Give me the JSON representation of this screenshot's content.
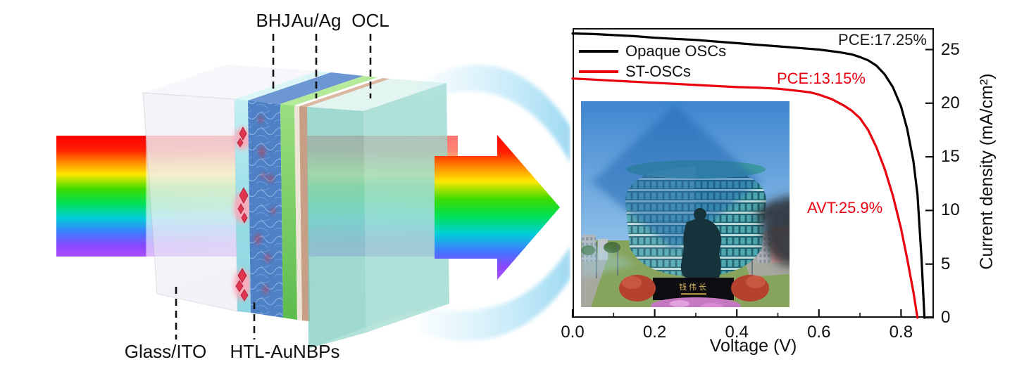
{
  "device": {
    "label_bhj": "BHJ",
    "label_auag": "Au/Ag",
    "label_ocl": "OCL",
    "label_glass_ito": "Glass/ITO",
    "label_htl": "HTL-AuNBPs"
  },
  "photo": {
    "pedestal_text": "钱伟长"
  },
  "chart_data": {
    "type": "line",
    "title": "",
    "xlabel": "Voltage (V)",
    "ylabel": "Current density (mA/cm²)",
    "xlim": [
      0,
      0.88
    ],
    "ylim": [
      0,
      27
    ],
    "x_major_ticks": [
      0,
      0.2,
      0.4,
      0.6,
      0.8
    ],
    "x_minor_step": 0.1,
    "y_major_ticks": [
      0,
      5,
      10,
      15,
      20,
      25
    ],
    "grid": false,
    "legend_position": "top-left",
    "legend": [
      {
        "label": "Opaque OSCs",
        "color": "#000000"
      },
      {
        "label": "ST-OSCs",
        "color": "#e8000f"
      }
    ],
    "annotations": [
      {
        "text": "PCE:17.25%",
        "color": "#1a1a1a"
      },
      {
        "text": "PCE:13.15%",
        "color": "#e8000f"
      },
      {
        "text": "AVT:25.9%",
        "color": "#e8000f"
      }
    ],
    "series": [
      {
        "name": "Opaque OSCs",
        "color": "#000000",
        "points": [
          [
            0,
            26.5
          ],
          [
            0.05,
            26.45
          ],
          [
            0.1,
            26.35
          ],
          [
            0.15,
            26.25
          ],
          [
            0.2,
            26.1
          ],
          [
            0.25,
            26.0
          ],
          [
            0.3,
            25.9
          ],
          [
            0.35,
            25.75
          ],
          [
            0.4,
            25.6
          ],
          [
            0.45,
            25.45
          ],
          [
            0.5,
            25.3
          ],
          [
            0.55,
            25.15
          ],
          [
            0.6,
            25.0
          ],
          [
            0.65,
            24.75
          ],
          [
            0.68,
            24.55
          ],
          [
            0.7,
            24.3
          ],
          [
            0.72,
            24.0
          ],
          [
            0.74,
            23.5
          ],
          [
            0.76,
            22.7
          ],
          [
            0.78,
            21.5
          ],
          [
            0.8,
            19.7
          ],
          [
            0.815,
            17.6
          ],
          [
            0.83,
            14.6
          ],
          [
            0.84,
            11.5
          ],
          [
            0.85,
            5.5
          ],
          [
            0.857,
            0
          ]
        ]
      },
      {
        "name": "ST-OSCs",
        "color": "#e8000f",
        "points": [
          [
            0,
            22.3
          ],
          [
            0.05,
            22.2
          ],
          [
            0.1,
            22.1
          ],
          [
            0.15,
            22.0
          ],
          [
            0.2,
            21.9
          ],
          [
            0.25,
            21.8
          ],
          [
            0.3,
            21.7
          ],
          [
            0.35,
            21.6
          ],
          [
            0.4,
            21.5
          ],
          [
            0.45,
            21.45
          ],
          [
            0.5,
            21.35
          ],
          [
            0.55,
            21.15
          ],
          [
            0.58,
            21.0
          ],
          [
            0.6,
            20.8
          ],
          [
            0.63,
            20.4
          ],
          [
            0.66,
            19.8
          ],
          [
            0.68,
            19.3
          ],
          [
            0.7,
            18.6
          ],
          [
            0.72,
            17.5
          ],
          [
            0.74,
            15.9
          ],
          [
            0.76,
            13.9
          ],
          [
            0.78,
            11.4
          ],
          [
            0.8,
            8.3
          ],
          [
            0.815,
            5.5
          ],
          [
            0.83,
            2.4
          ],
          [
            0.84,
            0
          ]
        ]
      }
    ]
  }
}
